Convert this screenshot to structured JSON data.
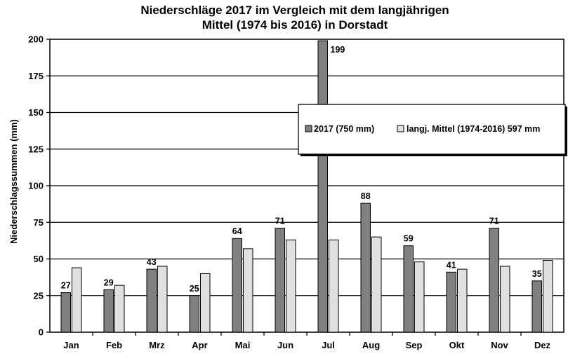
{
  "chart_data": {
    "type": "bar",
    "title": "Niederschläge 2017 im Vergleich mit dem langjährigen",
    "subtitle": "Mittel (1974 bis 2016) in Dorstadt",
    "ylabel": "Niederschlagssummen (mm)",
    "xlabel": "",
    "categories": [
      "Jan",
      "Feb",
      "Mrz",
      "Apr",
      "Mai",
      "Jun",
      "Jul",
      "Aug",
      "Sep",
      "Okt",
      "Nov",
      "Dez"
    ],
    "series": [
      {
        "name": "2017 (750 mm)",
        "color": "#808080",
        "values": [
          27,
          29,
          43,
          25,
          64,
          71,
          199,
          88,
          59,
          41,
          71,
          35
        ],
        "labels": [
          "27",
          "29",
          "43",
          "25",
          "64",
          "71",
          "199",
          "88",
          "59",
          "41",
          "71",
          "35"
        ]
      },
      {
        "name": "langj. Mittel (1974-2016) 597 mm",
        "color": "#e0e0e0",
        "values": [
          44,
          32,
          45,
          40,
          57,
          63,
          63,
          65,
          48,
          43,
          45,
          49
        ]
      }
    ],
    "ylim": [
      0,
      200
    ],
    "yticks": [
      "0",
      "25",
      "50",
      "75",
      "100",
      "125",
      "150",
      "175",
      "200"
    ],
    "grid": true,
    "legend": "right"
  }
}
